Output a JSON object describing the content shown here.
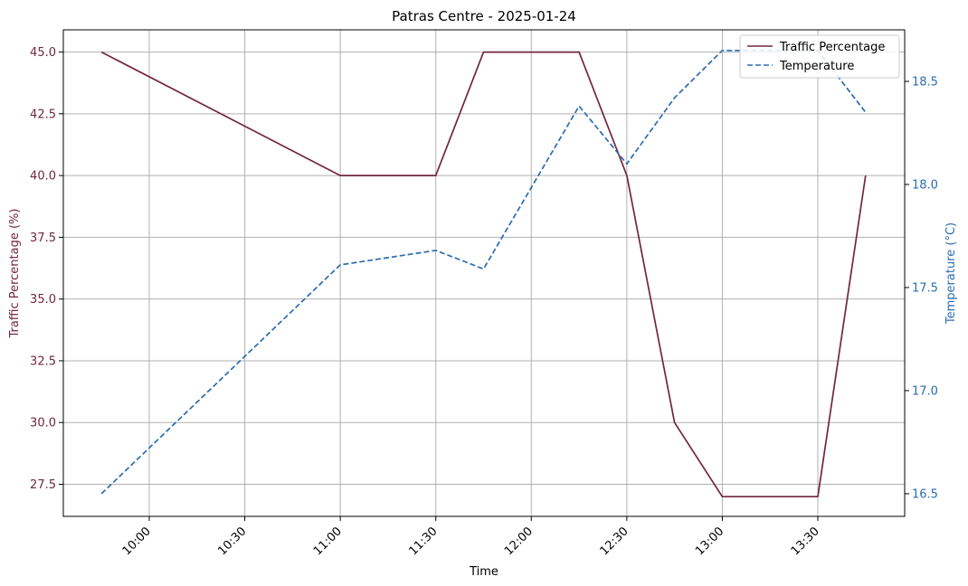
{
  "colors": {
    "traffic": "#722640",
    "temperature": "#2a6db0",
    "grid": "#b0b0b0",
    "axis": "#000000"
  },
  "chart_data": {
    "type": "line",
    "title": "Patras Centre - 2025-01-24",
    "xlabel": "Time",
    "ylabel_left": "Traffic Percentage (%)",
    "ylabel_right": "Temperature (°C)",
    "grid": true,
    "legend_position": "top-right",
    "x_ticks": [
      "10:00",
      "10:30",
      "11:00",
      "11:30",
      "12:00",
      "12:30",
      "13:00",
      "13:30"
    ],
    "x": [
      "09:45",
      "11:00",
      "11:30",
      "11:45",
      "12:15",
      "12:30",
      "12:45",
      "13:00",
      "13:30",
      "13:45"
    ],
    "y_left_ticks": [
      "27.5",
      "30.0",
      "32.5",
      "35.0",
      "37.5",
      "40.0",
      "42.5",
      "45.0"
    ],
    "y_right_ticks": [
      "16.5",
      "17.0",
      "17.5",
      "18.0",
      "18.5"
    ],
    "ylim_left": [
      26.2,
      45.9
    ],
    "ylim_right": [
      16.39,
      18.75
    ],
    "series": [
      {
        "name": "Traffic Percentage",
        "axis": "left",
        "style": "solid",
        "values": [
          45,
          40,
          40,
          45,
          45,
          40,
          30,
          27,
          27,
          40
        ]
      },
      {
        "name": "Temperature",
        "axis": "right",
        "style": "dashed",
        "values": [
          16.5,
          17.61,
          17.68,
          17.59,
          18.38,
          18.1,
          18.42,
          18.65,
          18.65,
          18.35
        ]
      }
    ]
  }
}
